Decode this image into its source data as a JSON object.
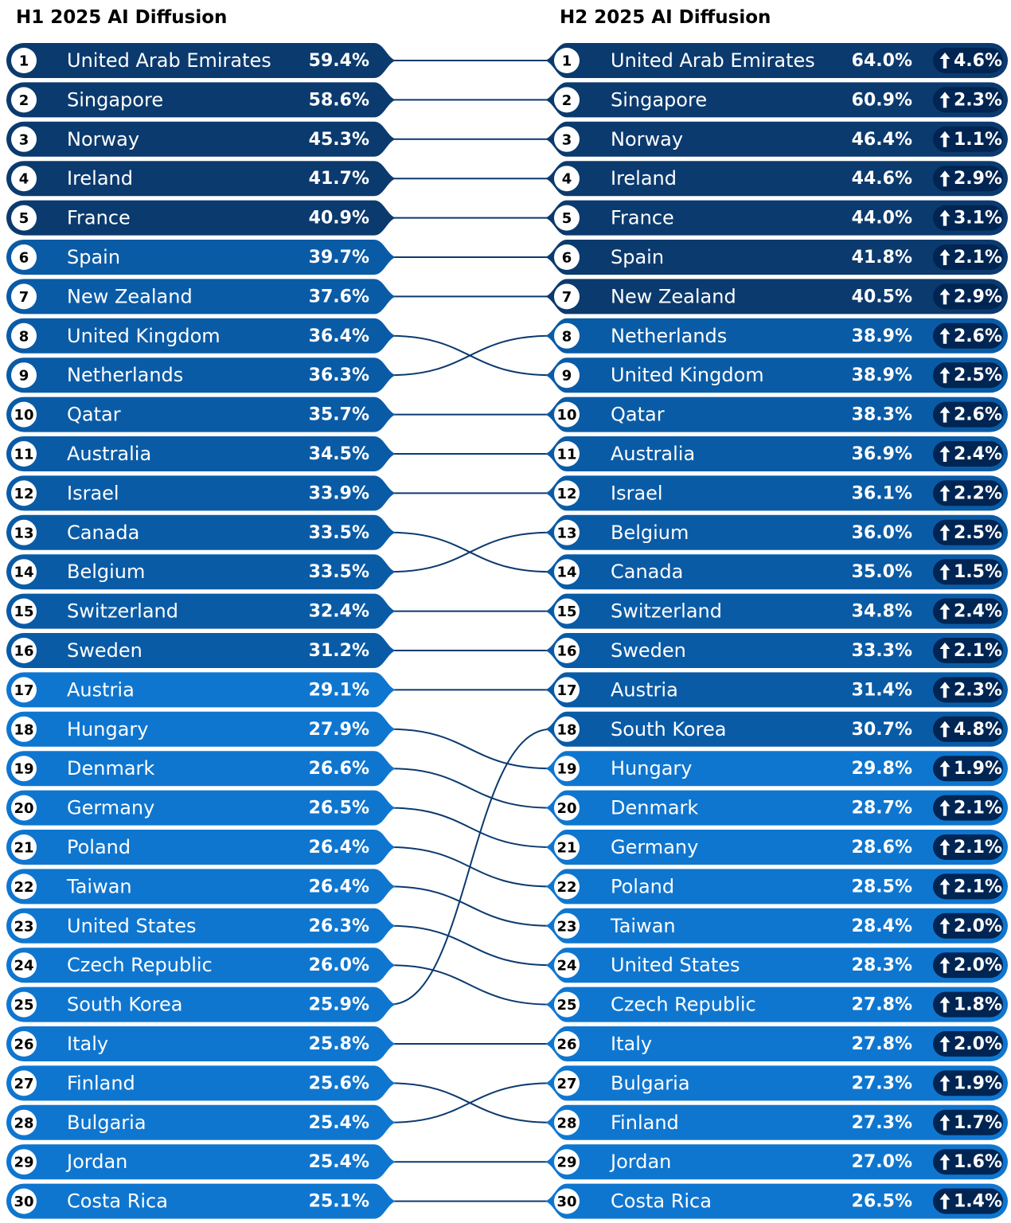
{
  "titles": {
    "left": "H1 2025 AI Diffusion",
    "right": "H2 2025 AI Diffusion"
  },
  "colors": {
    "tier1": "#0b3a6e",
    "tier2": "#0a5ba6",
    "tier3": "#0f76d0",
    "pill": "#002553",
    "circle": "#ffffff",
    "connector": "#0b3a6e"
  },
  "icons": {
    "change": "up-arrow-icon"
  },
  "chart_data": {
    "type": "bump",
    "left": {
      "title": "H1 2025 AI Diffusion",
      "rows": [
        {
          "rank": 1,
          "country": "United Arab Emirates",
          "value": "59.4%",
          "tier": 1
        },
        {
          "rank": 2,
          "country": "Singapore",
          "value": "58.6%",
          "tier": 1
        },
        {
          "rank": 3,
          "country": "Norway",
          "value": "45.3%",
          "tier": 1
        },
        {
          "rank": 4,
          "country": "Ireland",
          "value": "41.7%",
          "tier": 1
        },
        {
          "rank": 5,
          "country": "France",
          "value": "40.9%",
          "tier": 1
        },
        {
          "rank": 6,
          "country": "Spain",
          "value": "39.7%",
          "tier": 2
        },
        {
          "rank": 7,
          "country": "New Zealand",
          "value": "37.6%",
          "tier": 2
        },
        {
          "rank": 8,
          "country": "United Kingdom",
          "value": "36.4%",
          "tier": 2
        },
        {
          "rank": 9,
          "country": "Netherlands",
          "value": "36.3%",
          "tier": 2
        },
        {
          "rank": 10,
          "country": "Qatar",
          "value": "35.7%",
          "tier": 2
        },
        {
          "rank": 11,
          "country": "Australia",
          "value": "34.5%",
          "tier": 2
        },
        {
          "rank": 12,
          "country": "Israel",
          "value": "33.9%",
          "tier": 2
        },
        {
          "rank": 13,
          "country": "Canada",
          "value": "33.5%",
          "tier": 2
        },
        {
          "rank": 14,
          "country": "Belgium",
          "value": "33.5%",
          "tier": 2
        },
        {
          "rank": 15,
          "country": "Switzerland",
          "value": "32.4%",
          "tier": 2
        },
        {
          "rank": 16,
          "country": "Sweden",
          "value": "31.2%",
          "tier": 2
        },
        {
          "rank": 17,
          "country": "Austria",
          "value": "29.1%",
          "tier": 3
        },
        {
          "rank": 18,
          "country": "Hungary",
          "value": "27.9%",
          "tier": 3
        },
        {
          "rank": 19,
          "country": "Denmark",
          "value": "26.6%",
          "tier": 3
        },
        {
          "rank": 20,
          "country": "Germany",
          "value": "26.5%",
          "tier": 3
        },
        {
          "rank": 21,
          "country": "Poland",
          "value": "26.4%",
          "tier": 3
        },
        {
          "rank": 22,
          "country": "Taiwan",
          "value": "26.4%",
          "tier": 3
        },
        {
          "rank": 23,
          "country": "United States",
          "value": "26.3%",
          "tier": 3
        },
        {
          "rank": 24,
          "country": "Czech Republic",
          "value": "26.0%",
          "tier": 3
        },
        {
          "rank": 25,
          "country": "South Korea",
          "value": "25.9%",
          "tier": 3
        },
        {
          "rank": 26,
          "country": "Italy",
          "value": "25.8%",
          "tier": 3
        },
        {
          "rank": 27,
          "country": "Finland",
          "value": "25.6%",
          "tier": 3
        },
        {
          "rank": 28,
          "country": "Bulgaria",
          "value": "25.4%",
          "tier": 3
        },
        {
          "rank": 29,
          "country": "Jordan",
          "value": "25.4%",
          "tier": 3
        },
        {
          "rank": 30,
          "country": "Costa Rica",
          "value": "25.1%",
          "tier": 3
        }
      ]
    },
    "right": {
      "title": "H2 2025 AI Diffusion",
      "rows": [
        {
          "rank": 1,
          "country": "United Arab Emirates",
          "value": "64.0%",
          "change": "4.6%",
          "tier": 1
        },
        {
          "rank": 2,
          "country": "Singapore",
          "value": "60.9%",
          "change": "2.3%",
          "tier": 1
        },
        {
          "rank": 3,
          "country": "Norway",
          "value": "46.4%",
          "change": "1.1%",
          "tier": 1
        },
        {
          "rank": 4,
          "country": "Ireland",
          "value": "44.6%",
          "change": "2.9%",
          "tier": 1
        },
        {
          "rank": 5,
          "country": "France",
          "value": "44.0%",
          "change": "3.1%",
          "tier": 1
        },
        {
          "rank": 6,
          "country": "Spain",
          "value": "41.8%",
          "change": "2.1%",
          "tier": 1
        },
        {
          "rank": 7,
          "country": "New Zealand",
          "value": "40.5%",
          "change": "2.9%",
          "tier": 1
        },
        {
          "rank": 8,
          "country": "Netherlands",
          "value": "38.9%",
          "change": "2.6%",
          "tier": 2
        },
        {
          "rank": 9,
          "country": "United Kingdom",
          "value": "38.9%",
          "change": "2.5%",
          "tier": 2
        },
        {
          "rank": 10,
          "country": "Qatar",
          "value": "38.3%",
          "change": "2.6%",
          "tier": 2
        },
        {
          "rank": 11,
          "country": "Australia",
          "value": "36.9%",
          "change": "2.4%",
          "tier": 2
        },
        {
          "rank": 12,
          "country": "Israel",
          "value": "36.1%",
          "change": "2.2%",
          "tier": 2
        },
        {
          "rank": 13,
          "country": "Belgium",
          "value": "36.0%",
          "change": "2.5%",
          "tier": 2
        },
        {
          "rank": 14,
          "country": "Canada",
          "value": "35.0%",
          "change": "1.5%",
          "tier": 2
        },
        {
          "rank": 15,
          "country": "Switzerland",
          "value": "34.8%",
          "change": "2.4%",
          "tier": 2
        },
        {
          "rank": 16,
          "country": "Sweden",
          "value": "33.3%",
          "change": "2.1%",
          "tier": 2
        },
        {
          "rank": 17,
          "country": "Austria",
          "value": "31.4%",
          "change": "2.3%",
          "tier": 2
        },
        {
          "rank": 18,
          "country": "South Korea",
          "value": "30.7%",
          "change": "4.8%",
          "tier": 2
        },
        {
          "rank": 19,
          "country": "Hungary",
          "value": "29.8%",
          "change": "1.9%",
          "tier": 3
        },
        {
          "rank": 20,
          "country": "Denmark",
          "value": "28.7%",
          "change": "2.1%",
          "tier": 3
        },
        {
          "rank": 21,
          "country": "Germany",
          "value": "28.6%",
          "change": "2.1%",
          "tier": 3
        },
        {
          "rank": 22,
          "country": "Poland",
          "value": "28.5%",
          "change": "2.1%",
          "tier": 3
        },
        {
          "rank": 23,
          "country": "Taiwan",
          "value": "28.4%",
          "change": "2.0%",
          "tier": 3
        },
        {
          "rank": 24,
          "country": "United States",
          "value": "28.3%",
          "change": "2.0%",
          "tier": 3
        },
        {
          "rank": 25,
          "country": "Czech Republic",
          "value": "27.8%",
          "change": "1.8%",
          "tier": 3
        },
        {
          "rank": 26,
          "country": "Italy",
          "value": "27.8%",
          "change": "2.0%",
          "tier": 3
        },
        {
          "rank": 27,
          "country": "Bulgaria",
          "value": "27.3%",
          "change": "1.9%",
          "tier": 3
        },
        {
          "rank": 28,
          "country": "Finland",
          "value": "27.3%",
          "change": "1.7%",
          "tier": 3
        },
        {
          "rank": 29,
          "country": "Jordan",
          "value": "27.0%",
          "change": "1.6%",
          "tier": 3
        },
        {
          "rank": 30,
          "country": "Costa Rica",
          "value": "26.5%",
          "change": "1.4%",
          "tier": 3
        }
      ]
    }
  }
}
